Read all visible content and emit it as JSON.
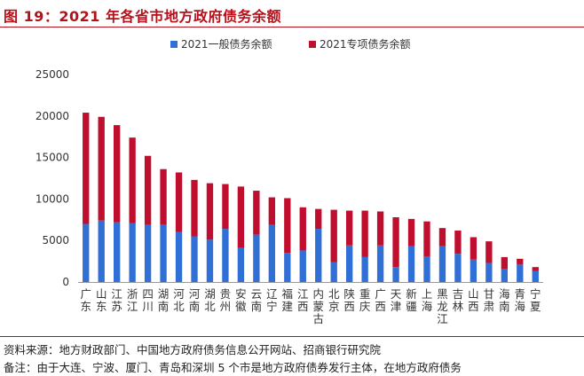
{
  "figure": {
    "title": "图 19：2021 年各省市地方政府债务余额",
    "source": "资料来源：地方财政部门、中国地方政府债务信息公开网站、招商银行研究院",
    "remark": "备注：由于大连、宁波、厦门、青岛和深圳 5 个市是地方政府债券发行主体，在地方政府债务",
    "remark_continued": ""
  },
  "colors": {
    "accent": "#b3121c",
    "general_debt": "#2f6fd6",
    "special_debt": "#c00f2e",
    "axis_text": "#333333"
  },
  "chart_data": {
    "type": "bar",
    "stacked": true,
    "categories": [
      [
        "广",
        "东"
      ],
      [
        "山",
        "东"
      ],
      [
        "江",
        "苏"
      ],
      [
        "浙",
        "江"
      ],
      [
        "四",
        "川"
      ],
      [
        "湖",
        "南"
      ],
      [
        "河",
        "北"
      ],
      [
        "河",
        "南"
      ],
      [
        "湖",
        "北"
      ],
      [
        "贵",
        "州"
      ],
      [
        "安",
        "徽"
      ],
      [
        "云",
        "南"
      ],
      [
        "辽",
        "宁"
      ],
      [
        "福",
        "建"
      ],
      [
        "江",
        "西"
      ],
      [
        "内",
        "蒙",
        "古"
      ],
      [
        "北",
        "京"
      ],
      [
        "陕",
        "西"
      ],
      [
        "重",
        "庆"
      ],
      [
        "广",
        "西"
      ],
      [
        "天",
        "津"
      ],
      [
        "新",
        "疆"
      ],
      [
        "上",
        "海"
      ],
      [
        "黑",
        "龙",
        "江"
      ],
      [
        "吉",
        "林"
      ],
      [
        "山",
        "西"
      ],
      [
        "甘",
        "肃"
      ],
      [
        "海",
        "南"
      ],
      [
        "青",
        "海"
      ],
      [
        "宁",
        "夏"
      ]
    ],
    "series": [
      {
        "name": "2021一般债务余额",
        "color": "#2f6fd6",
        "values": [
          7000,
          7400,
          7200,
          7100,
          6900,
          6900,
          6000,
          5500,
          5100,
          6400,
          4100,
          5700,
          6900,
          3500,
          3800,
          6400,
          2400,
          4400,
          3000,
          4400,
          1800,
          4300,
          3100,
          4300,
          3400,
          2700,
          2300,
          1600,
          2100,
          1300
        ]
      },
      {
        "name": "2021专项债务余额",
        "color": "#c00f2e",
        "values": [
          13400,
          12500,
          11700,
          10300,
          8300,
          6700,
          7200,
          6800,
          6800,
          5400,
          7400,
          5300,
          3300,
          6600,
          5200,
          2400,
          6300,
          4200,
          5600,
          4100,
          6000,
          3300,
          4200,
          2200,
          2800,
          2700,
          2600,
          1400,
          700,
          500
        ]
      }
    ],
    "ylim": [
      0,
      25000
    ],
    "yticks": [
      0,
      5000,
      10000,
      15000,
      20000,
      25000
    ],
    "legend_position": "top-center",
    "grid": false
  }
}
